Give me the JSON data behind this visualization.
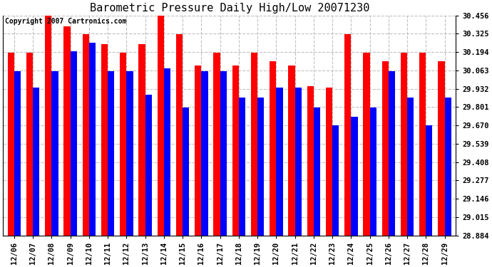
{
  "title": "Barometric Pressure Daily High/Low 20071230",
  "copyright": "Copyright 2007 Cartronics.com",
  "dates": [
    "12/06",
    "12/07",
    "12/08",
    "12/09",
    "12/10",
    "12/11",
    "12/12",
    "12/13",
    "12/14",
    "12/15",
    "12/16",
    "12/17",
    "12/18",
    "12/19",
    "12/20",
    "12/21",
    "12/22",
    "12/23",
    "12/24",
    "12/25",
    "12/26",
    "12/27",
    "12/28",
    "12/29"
  ],
  "highs": [
    30.19,
    30.19,
    30.46,
    30.38,
    30.32,
    30.25,
    30.19,
    30.25,
    30.46,
    30.32,
    30.1,
    30.19,
    30.1,
    30.19,
    30.13,
    30.1,
    29.95,
    29.94,
    30.32,
    30.19,
    30.13,
    30.19,
    30.19,
    30.13
  ],
  "lows": [
    30.06,
    29.94,
    30.06,
    30.2,
    30.26,
    30.06,
    30.06,
    29.89,
    30.08,
    29.8,
    30.06,
    30.06,
    29.87,
    29.87,
    29.94,
    29.94,
    29.8,
    29.67,
    29.73,
    29.8,
    30.06,
    29.87,
    29.67,
    29.87
  ],
  "high_color": "#FF0000",
  "low_color": "#0000FF",
  "bg_color": "#FFFFFF",
  "plot_bg_color": "#FFFFFF",
  "grid_color": "#C0C0C0",
  "ymin": 28.884,
  "ymax": 30.456,
  "yticks": [
    28.884,
    29.015,
    29.146,
    29.277,
    29.408,
    29.539,
    29.67,
    29.801,
    29.932,
    30.063,
    30.194,
    30.325,
    30.456
  ],
  "title_fontsize": 11,
  "copyright_fontsize": 7,
  "bar_width": 0.35,
  "figwidth": 6.9,
  "figheight": 3.75,
  "dpi": 100
}
